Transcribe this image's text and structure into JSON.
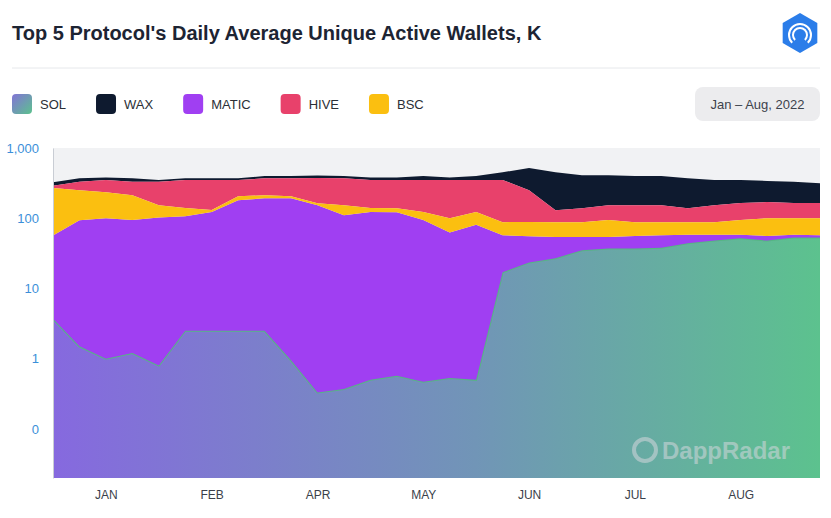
{
  "chart_data": {
    "type": "area",
    "title": "Top 5 Protocol's Daily Average Unique Active Wallets, K",
    "subtitle": "Jan – Aug, 2022",
    "annotations": [
      "DappRadar"
    ],
    "stacked": true,
    "log": "y",
    "legend": "top-left",
    "categories": [
      null,
      null,
      "JAN",
      null,
      null,
      null,
      "FEB",
      null,
      null,
      null,
      "APR",
      null,
      null,
      null,
      "MAY",
      null,
      null,
      null,
      "JUN",
      null,
      null,
      null,
      "JUL",
      null,
      null,
      null,
      "AUG",
      null,
      null,
      null
    ],
    "ylim": [
      0.02,
      1000
    ],
    "yticks": [
      {
        "value": 0.1,
        "label": "0"
      },
      1,
      10,
      100,
      {
        "value": 1000,
        "label": "1,000"
      }
    ],
    "series": [
      {
        "name": "SOL",
        "color": "#5cc28e",
        "values": [
          3.7,
          1.5,
          1,
          1.2,
          0.8,
          2.5,
          2.5,
          2.5,
          2.5,
          0.95,
          0.33,
          0.37,
          0.5,
          0.57,
          0.47,
          0.53,
          0.5,
          17,
          23.5,
          27,
          35,
          37,
          37,
          38,
          44,
          48,
          52,
          48,
          53,
          53
        ]
      },
      {
        "name": "WAX",
        "color": "#0e1a2f",
        "values": [
          35,
          40,
          30,
          40,
          20,
          20,
          20,
          20,
          30,
          30,
          30,
          30,
          30,
          30,
          50,
          30,
          50,
          100,
          270,
          320,
          271,
          257,
          247,
          247,
          231,
          197,
          185,
          170,
          165,
          150
        ]
      },
      {
        "name": "MATIC",
        "color": "#a03ff2",
        "values": [
          53,
          92,
          99,
          93,
          102,
          104,
          120,
          178,
          190,
          192,
          153,
          110,
          122,
          121,
          94,
          62,
          80,
          40,
          32,
          27,
          19,
          17,
          19,
          19,
          14,
          10,
          6,
          8,
          5,
          4
        ]
      },
      {
        "name": "HIVE",
        "color": "#e8416b",
        "values": [
          20,
          80,
          115,
          117,
          177,
          211,
          220,
          145,
          157,
          165,
          212,
          217,
          211,
          211,
          228,
          250,
          228,
          262,
          162,
          42,
          51,
          59,
          65,
          65,
          51,
          65,
          71,
          70,
          65,
          65
        ]
      },
      {
        "name": "BSC",
        "color": "#fbbf10",
        "values": [
          213,
          156,
          135,
          119,
          50,
          33,
          8,
          25,
          20,
          12,
          10,
          43,
          17,
          17,
          28,
          37,
          42,
          31,
          33,
          34,
          34,
          40,
          32,
          31,
          30,
          30,
          36,
          44,
          42,
          43
        ]
      }
    ]
  }
}
